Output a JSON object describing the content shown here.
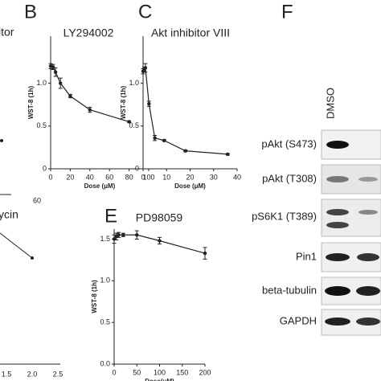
{
  "chart_data": [
    {
      "type": "line",
      "title": "LY294002",
      "x_label": "Dose (μM)",
      "y_label": "WST-8 (1h)",
      "x": [
        0,
        2.5,
        5,
        10,
        20,
        40,
        80
      ],
      "values": [
        1.2,
        1.19,
        1.13,
        1.0,
        0.85,
        0.69,
        0.55
      ],
      "errors": [
        0.03,
        0.03,
        0.05,
        0.06,
        0.02,
        0.03,
        0.01
      ],
      "color": "#222",
      "xlim": [
        0,
        100
      ],
      "xticks": [
        0,
        20,
        40,
        60,
        80,
        100
      ],
      "ylim": [
        0,
        1.55
      ],
      "yticks": [
        0,
        0.5,
        {
          "value": 1,
          "label": "1.0"
        }
      ]
    },
    {
      "type": "line",
      "title": "Akt inhibitor VIII",
      "x_label": "Dose (μM)",
      "y_label": "WST-8 (1h)",
      "x": [
        0,
        0.5,
        1,
        2.5,
        5,
        9,
        18,
        36
      ],
      "values": [
        1.14,
        1.16,
        1.18,
        0.76,
        0.36,
        0.33,
        0.21,
        0.17
      ],
      "errors": [
        0.03,
        0.03,
        0.05,
        0.03,
        0.03,
        0.01,
        0.01,
        0.01
      ],
      "color": "#222",
      "xlim": [
        0,
        40
      ],
      "xticks": [
        0,
        10,
        20,
        30,
        40
      ],
      "ylim": [
        0,
        1.55
      ],
      "yticks": [
        0,
        0.5,
        {
          "value": 1,
          "label": "1.0"
        }
      ]
    },
    {
      "type": "line",
      "title": "PD98059",
      "x_label": "Dose(μM)",
      "y_label": "WST-8 (1h)",
      "x": [
        0,
        5,
        10,
        20,
        50,
        100,
        200
      ],
      "values": [
        1.5,
        1.53,
        1.55,
        1.55,
        1.55,
        1.48,
        1.33
      ],
      "errors": [
        0.05,
        0.04,
        0.03,
        0.02,
        0.05,
        0.04,
        0.07
      ],
      "color": "#222",
      "xlim": [
        0,
        200
      ],
      "xticks": [
        0,
        50,
        100,
        150,
        200
      ],
      "ylim": [
        0,
        1.62
      ],
      "yticks": [
        {
          "value": 0,
          "label": "0.0"
        },
        0.5,
        {
          "value": 1,
          "label": "1.0"
        },
        1.5
      ]
    }
  ],
  "panel_labels": [
    "B",
    "C",
    "E",
    "F"
  ],
  "fragments": {
    "title_a": "itor",
    "tick_a": "60",
    "title_d": "ycin",
    "ticks_d": [
      "1.5",
      "2.0",
      "2.5"
    ]
  },
  "blot": {
    "lanes": [
      "DMSO"
    ],
    "rows": [
      "pAkt (S473)",
      "pAkt (T308)",
      "pS6K1 (T389)",
      "Pin1",
      "beta-tubulin",
      "GAPDH"
    ]
  }
}
